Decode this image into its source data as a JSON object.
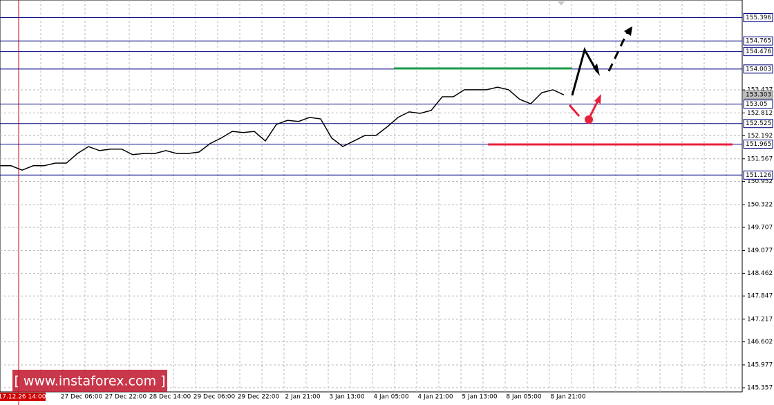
{
  "chart_data": {
    "type": "line",
    "x_labels": [
      "17.12.26 14:00",
      "27 Dec 06:00",
      "27 Dec 22:00",
      "28 Dec 14:00",
      "29 Dec 06:00",
      "29 Dec 22:00",
      "2 Jan 21:00",
      "3 Jan 13:00",
      "4 Jan 05:00",
      "4 Jan 21:00",
      "5 Jan 13:00",
      "8 Jan 05:00",
      "8 Jan 21:00"
    ],
    "series": [
      {
        "color": "#000000",
        "values": [
          151.38,
          151.38,
          151.26,
          151.38,
          151.38,
          151.45,
          151.45,
          151.71,
          151.9,
          151.79,
          151.83,
          151.83,
          151.68,
          151.71,
          151.71,
          151.79,
          151.71,
          151.71,
          151.75,
          151.98,
          152.13,
          152.31,
          152.28,
          152.31,
          152.05,
          152.5,
          152.61,
          152.58,
          152.69,
          152.65,
          152.13,
          151.9,
          152.05,
          152.2,
          152.2,
          152.43,
          152.69,
          152.84,
          152.8,
          152.88,
          153.25,
          153.25,
          153.44,
          153.44,
          153.44,
          153.51,
          153.44,
          153.18,
          153.06,
          153.36,
          153.44,
          153.3
        ]
      }
    ],
    "ylim": [
      145.245,
      155.875
    ],
    "yticks": [
      153.437,
      152.812,
      152.192,
      151.567,
      150.952,
      150.322,
      149.707,
      149.077,
      148.462,
      147.847,
      147.217,
      146.602,
      145.977,
      145.357
    ],
    "levels": [
      155.396,
      154.765,
      154.476,
      154.003,
      153.05,
      152.525,
      151.965,
      151.126
    ],
    "level_color": "#000080",
    "current_price": 153.303,
    "grid": true,
    "watermark": "[ www.instaforex.com ]"
  }
}
